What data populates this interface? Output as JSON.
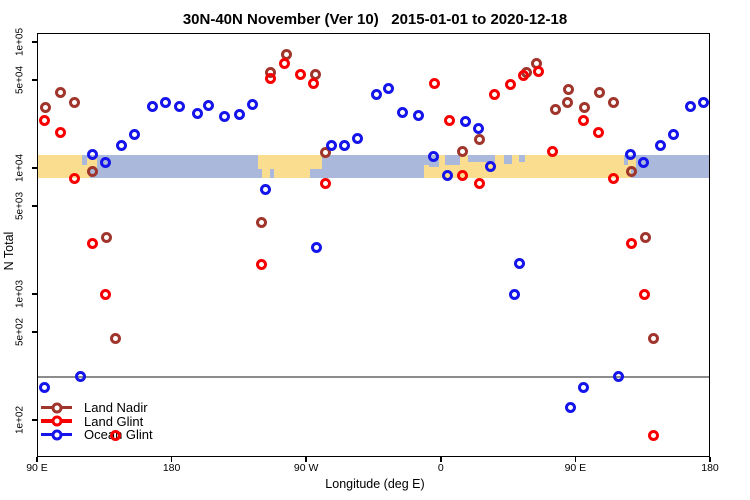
{
  "title": "30N-40N November (Ver 10)   2015-01-01 to 2020-12-18",
  "axes": {
    "xlabel": "Longitude (deg E)",
    "ylabel": "N Total"
  },
  "legend": {
    "items": [
      {
        "label": "Land Nadir",
        "color": "#A0352C"
      },
      {
        "label": "Land Glint",
        "color": "#F90000"
      },
      {
        "label": "Ocean Glint",
        "color": "#1414EB"
      }
    ]
  },
  "chart_data": {
    "type": "scatter",
    "title": "30N-40N November (Ver 10)   2015-01-01 to 2020-12-18",
    "xlabel": "Longitude (deg E)",
    "ylabel": "N Total",
    "y_scale": "log",
    "xlim_display_deg": [
      90,
      540
    ],
    "ylim": [
      100,
      100000
    ],
    "x_note": "x axis wraps the globe: shown from 90E eastward through 180, 90W, 0, 90E to 180; points with longitude 90E-180E are plotted at both ends (lon and lon+360)",
    "x_ticks": [
      {
        "lon": 90,
        "label": "90 E"
      },
      {
        "lon": 180,
        "label": "180"
      },
      {
        "lon": 270,
        "label": "90 W"
      },
      {
        "lon": 360,
        "label": "0"
      },
      {
        "lon": 450,
        "label": "90 E"
      },
      {
        "lon": 540,
        "label": "180"
      }
    ],
    "y_ticks": [
      {
        "v": 100000,
        "label": "1e+05"
      },
      {
        "v": 50000,
        "label": "5e+04"
      },
      {
        "v": 10000,
        "label": "1e+04"
      },
      {
        "v": 5000,
        "label": "5e+03"
      },
      {
        "v": 1000,
        "label": "1e+03"
      },
      {
        "v": 500,
        "label": "5e+02"
      },
      {
        "v": 100,
        "label": "1e+02"
      }
    ],
    "threshold_line": {
      "value": 220,
      "color": "#8C8C8C"
    },
    "map_strip": {
      "description": "land/ocean strip of the 30N-40N latitude band drawn across the plot at N = 1e+04",
      "value_top": 12700,
      "value_bottom": 8300,
      "ocean_color": "#A9B8DB",
      "land_color": "#FBDD8F",
      "land_rects": [
        [
          90,
          120.2,
          0,
          1
        ],
        [
          120.2,
          125.5,
          0.45,
          1
        ],
        [
          123.5,
          130,
          0.12,
          0.6
        ],
        [
          237.5,
          280.5,
          0,
          0.62
        ],
        [
          240.5,
          272.5,
          0.62,
          1
        ],
        [
          348.8,
          352,
          0.45,
          1
        ],
        [
          352,
          482.5,
          0,
          1
        ],
        [
          482.5,
          487.5,
          0.45,
          1
        ],
        [
          485.5,
          490.5,
          0.12,
          0.6
        ]
      ],
      "ocean_patches": [
        [
          246,
          248.5,
          0.62,
          1
        ],
        [
          352,
          359,
          0,
          0.5
        ],
        [
          363,
          373,
          0,
          0.42
        ],
        [
          378,
          396,
          0,
          0.3
        ],
        [
          402.5,
          407.5,
          0,
          0.38
        ],
        [
          412,
          416,
          0,
          0.3
        ]
      ]
    },
    "series": [
      {
        "name": "Land Nadir",
        "color": "#A0352C",
        "points": [
          [
            96,
            30000
          ],
          [
            106,
            40000
          ],
          [
            115.4,
            32800
          ],
          [
            127.4,
            9300
          ],
          [
            136.8,
            2800
          ],
          [
            142.2,
            440
          ],
          [
            239.8,
            3700
          ],
          [
            245.8,
            57000
          ],
          [
            256.5,
            79000
          ],
          [
            275.9,
            55000
          ],
          [
            282.6,
            13200
          ],
          [
            374.2,
            13600
          ],
          [
            385.6,
            16700
          ],
          [
            417.6,
            57000
          ],
          [
            424.3,
            68000
          ],
          [
            436.4,
            29000
          ],
          [
            444.4,
            32800
          ],
          [
            445.1,
            42000
          ],
          [
            456,
            30000
          ],
          [
            466,
            40000
          ],
          [
            475.4,
            32800
          ],
          [
            487.4,
            9300
          ],
          [
            496.8,
            2800
          ],
          [
            502.2,
            440
          ]
        ]
      },
      {
        "name": "Land Glint",
        "color": "#F90000",
        "points": [
          [
            95.3,
            24000
          ],
          [
            105.4,
            19300
          ],
          [
            115.4,
            8300
          ],
          [
            127.4,
            2500
          ],
          [
            136.1,
            1000
          ],
          [
            142.2,
            75
          ],
          [
            239.8,
            1700
          ],
          [
            245.8,
            51000
          ],
          [
            255.2,
            68000
          ],
          [
            265.9,
            55000
          ],
          [
            275.2,
            47000
          ],
          [
            283.2,
            7600
          ],
          [
            356.1,
            47000
          ],
          [
            365.5,
            24000
          ],
          [
            374.2,
            8700
          ],
          [
            385.6,
            7500
          ],
          [
            395.6,
            38000
          ],
          [
            406.3,
            46000
          ],
          [
            415,
            54000
          ],
          [
            425,
            58000
          ],
          [
            435,
            13400
          ],
          [
            455.3,
            24000
          ],
          [
            465.4,
            19300
          ],
          [
            475.4,
            8300
          ],
          [
            487.4,
            2500
          ],
          [
            496.1,
            1000
          ],
          [
            502.2,
            75
          ]
        ]
      },
      {
        "name": "Ocean Glint",
        "color": "#1414EB",
        "points": [
          [
            95.3,
            180
          ],
          [
            118.8,
            220
          ],
          [
            126.8,
            12700
          ],
          [
            135.5,
            11000
          ],
          [
            146.8,
            15200
          ],
          [
            155.5,
            18600
          ],
          [
            166.9,
            31000
          ],
          [
            175.6,
            33400
          ],
          [
            185.6,
            31000
          ],
          [
            197,
            27300
          ],
          [
            205,
            31600
          ],
          [
            215.7,
            25400
          ],
          [
            225.7,
            26400
          ],
          [
            234.4,
            32200
          ],
          [
            243.1,
            6800
          ],
          [
            277.2,
            2360
          ],
          [
            286.6,
            15200
          ],
          [
            295.3,
            15000
          ],
          [
            304.6,
            17300
          ],
          [
            317.3,
            38000
          ],
          [
            324.7,
            43000
          ],
          [
            334.7,
            27800
          ],
          [
            344.8,
            26000
          ],
          [
            354.8,
            12400
          ],
          [
            364.8,
            8700
          ],
          [
            376.2,
            23600
          ],
          [
            384.9,
            20700
          ],
          [
            392.9,
            10200
          ],
          [
            409,
            1000
          ],
          [
            412.3,
            1760
          ],
          [
            446.4,
            125
          ],
          [
            455.3,
            180
          ],
          [
            478.8,
            220
          ],
          [
            486.8,
            12700
          ],
          [
            495.5,
            11000
          ],
          [
            506.8,
            15200
          ],
          [
            515.5,
            18600
          ],
          [
            526.9,
            31000
          ],
          [
            535.6,
            33400
          ]
        ]
      }
    ]
  }
}
